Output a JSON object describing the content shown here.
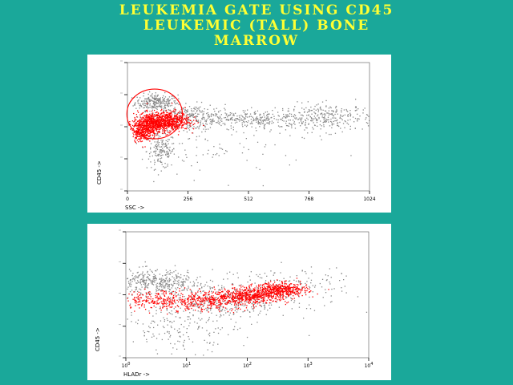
{
  "slide": {
    "title_lines": [
      "LEUKEMIA GATE USING CD45",
      "LEUKEMIC (TALL) BONE",
      "MARROW"
    ],
    "background": "#1aa89a",
    "title_color": "#ffff33"
  },
  "chart_data": [
    {
      "type": "scatter",
      "title": "",
      "xlabel": "SSC ->",
      "ylabel": "CD45 ->",
      "x_scale": "linear",
      "y_scale": "log",
      "xlim": [
        0,
        1024
      ],
      "ylim": [
        1,
        10000
      ],
      "x_ticks": [
        "0",
        "256",
        "512",
        "768",
        "1024"
      ],
      "y_ticks": [
        "",
        "",
        "",
        "",
        ""
      ],
      "grid": false,
      "gate": {
        "shape": "ellipse",
        "center": [
          115,
          250
        ],
        "width": 235,
        "height_decades": 1.55,
        "color": "#ff0000"
      },
      "series": [
        {
          "color": "#888888",
          "clusters": [
            {
              "x": 120,
              "y": 600,
              "n": 260,
              "sx": 45,
              "sdecade": 0.13
            },
            {
              "x": 140,
              "y": 18,
              "n": 160,
              "sx": 30,
              "sdecade": 0.28
            },
            {
              "x": 270,
              "y": 200,
              "n": 220,
              "sx": 70,
              "sdecade": 0.2
            },
            {
              "x": 520,
              "y": 180,
              "n": 360,
              "sx": 160,
              "sdecade": 0.15
            },
            {
              "x": 860,
              "y": 200,
              "n": 240,
              "sx": 90,
              "sdecade": 0.22
            },
            {
              "x": 350,
              "y": 20,
              "n": 90,
              "sx": 200,
              "sdecade": 0.45
            }
          ]
        },
        {
          "color": "#ff0000",
          "clusters": [
            {
              "x": 100,
              "y": 130,
              "n": 600,
              "sx": 40,
              "sdecade": 0.16
            },
            {
              "x": 170,
              "y": 160,
              "n": 500,
              "sx": 45,
              "sdecade": 0.15
            },
            {
              "x": 60,
              "y": 70,
              "n": 220,
              "sx": 20,
              "sdecade": 0.15
            }
          ]
        }
      ]
    },
    {
      "type": "scatter",
      "title": "",
      "xlabel": "HLADr ->",
      "ylabel": "CD45 ->",
      "x_scale": "log",
      "y_scale": "log",
      "xlim": [
        1,
        10000
      ],
      "ylim": [
        1,
        10000
      ],
      "x_ticks": [
        "10",
        "10",
        "10",
        "10",
        "10"
      ],
      "x_tick_exponents": [
        "0",
        "1",
        "2",
        "3",
        "4"
      ],
      "y_ticks": [
        "",
        "",
        "",
        "",
        ""
      ],
      "grid": false,
      "series": [
        {
          "color": "#888888",
          "clusters": [
            {
              "x": 3,
              "y": 250,
              "n": 420,
              "sdecx": 0.4,
              "sdecade": 0.2
            },
            {
              "x": 40,
              "y": 60,
              "n": 360,
              "sdecx": 0.55,
              "sdecade": 0.35
            },
            {
              "x": 600,
              "y": 200,
              "n": 120,
              "sdecx": 0.45,
              "sdecade": 0.3
            },
            {
              "x": 8,
              "y": 8,
              "n": 140,
              "sdecx": 0.45,
              "sdecade": 0.35
            }
          ]
        },
        {
          "color": "#ff0000",
          "clusters": [
            {
              "x": 4,
              "y": 70,
              "n": 260,
              "sdecx": 0.35,
              "sdecade": 0.15
            },
            {
              "x": 25,
              "y": 65,
              "n": 300,
              "sdecx": 0.35,
              "sdecade": 0.14
            },
            {
              "x": 120,
              "y": 100,
              "n": 500,
              "sdecx": 0.3,
              "sdecade": 0.12
            },
            {
              "x": 350,
              "y": 150,
              "n": 420,
              "sdecx": 0.22,
              "sdecade": 0.11
            }
          ]
        }
      ]
    }
  ]
}
